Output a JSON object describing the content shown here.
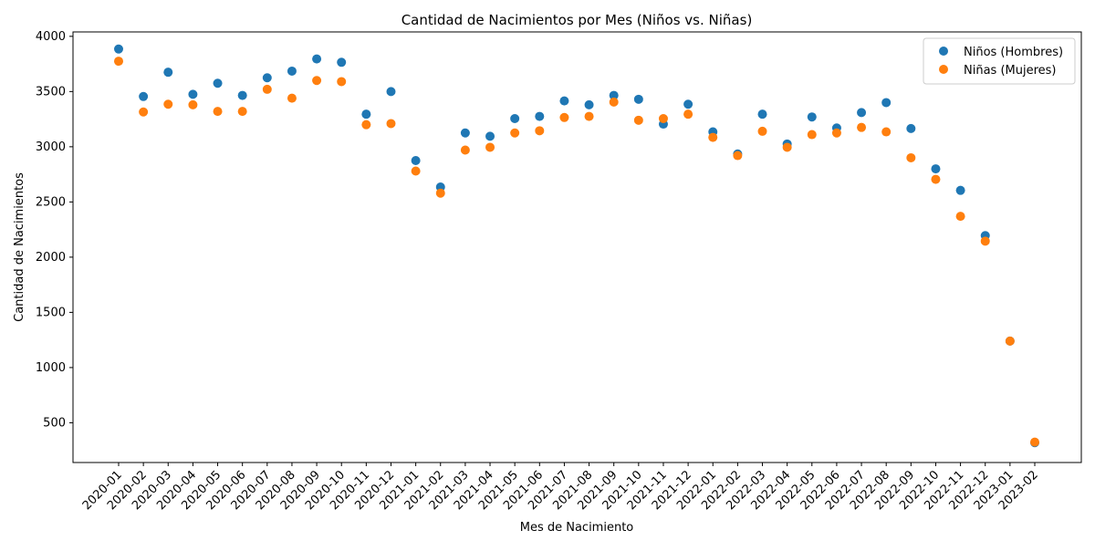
{
  "chart_data": {
    "type": "scatter",
    "title": "Cantidad de Nacimientos por Mes (Niños vs. Niñas)",
    "xlabel": "Mes de Nacimiento",
    "ylabel": "Cantidad de Nacimientos",
    "ylim": [
      140,
      4040
    ],
    "yticks": [
      500,
      1000,
      1500,
      2000,
      2500,
      3000,
      3500,
      4000
    ],
    "grid": false,
    "legend_position": "top-right",
    "categories": [
      "2020-01",
      "2020-02",
      "2020-03",
      "2020-04",
      "2020-05",
      "2020-06",
      "2020-07",
      "2020-08",
      "2020-09",
      "2020-10",
      "2020-11",
      "2020-12",
      "2021-01",
      "2021-02",
      "2021-03",
      "2021-04",
      "2021-05",
      "2021-06",
      "2021-07",
      "2021-08",
      "2021-09",
      "2021-10",
      "2021-11",
      "2021-12",
      "2022-01",
      "2022-02",
      "2022-03",
      "2022-04",
      "2022-05",
      "2022-06",
      "2022-07",
      "2022-08",
      "2022-09",
      "2022-10",
      "2022-11",
      "2022-12",
      "2023-01",
      "2023-02"
    ],
    "series": [
      {
        "name": "Niños (Hombres)",
        "color": "#1f77b4",
        "values": [
          3885,
          3455,
          3675,
          3475,
          3575,
          3465,
          3625,
          3685,
          3795,
          3765,
          3295,
          3500,
          2875,
          2635,
          3125,
          3095,
          3255,
          3275,
          3415,
          3380,
          3465,
          3430,
          3205,
          3385,
          3135,
          2935,
          3295,
          3025,
          3270,
          3170,
          3310,
          3400,
          3165,
          2800,
          2605,
          2195,
          1240,
          320
        ]
      },
      {
        "name": "Niñas (Mujeres)",
        "color": "#ff7f0e",
        "values": [
          3775,
          3315,
          3385,
          3380,
          3320,
          3320,
          3520,
          3440,
          3600,
          3590,
          3200,
          3210,
          2780,
          2580,
          2970,
          2995,
          3125,
          3145,
          3265,
          3275,
          3405,
          3240,
          3255,
          3295,
          3085,
          2920,
          3140,
          2995,
          3110,
          3125,
          3175,
          3135,
          2900,
          2705,
          2370,
          2145,
          1240,
          325
        ]
      }
    ]
  }
}
